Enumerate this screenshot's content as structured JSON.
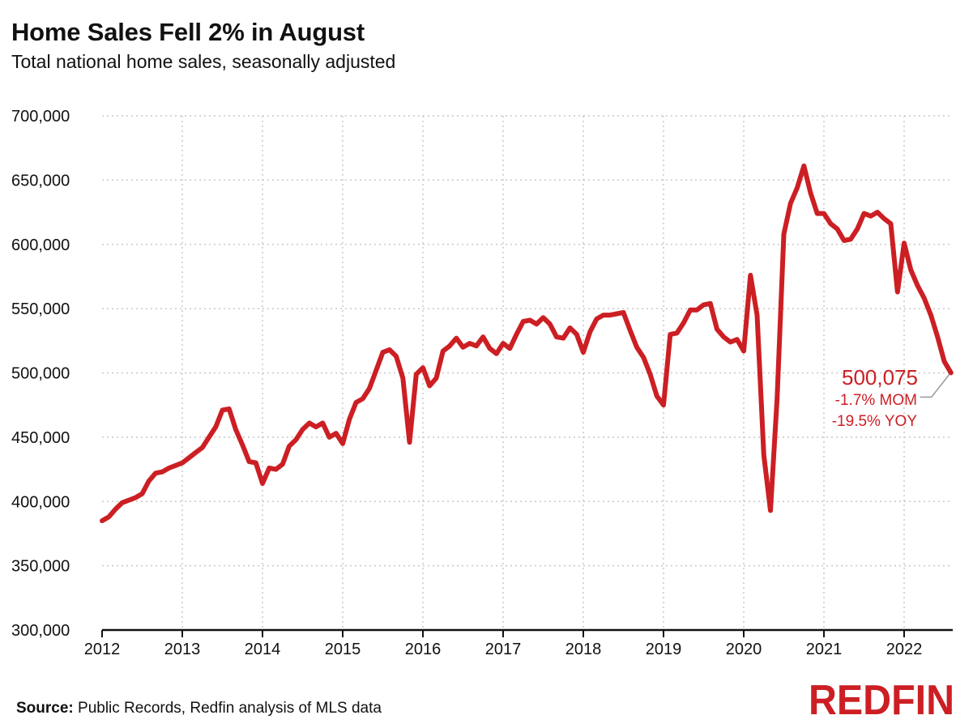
{
  "header": {
    "title": "Home Sales Fell 2% in August",
    "subtitle": "Total national home sales, seasonally adjusted"
  },
  "footer": {
    "source_label": "Source:",
    "source_text": "Public Records, Redfin analysis of MLS data",
    "logo_text": "REDFIN"
  },
  "colors": {
    "line": "#cc1f24",
    "annotation": "#cc1f24",
    "grid": "#c8c8c8",
    "axis": "#111111",
    "logo": "#cc1f24"
  },
  "chart_data": {
    "type": "line",
    "title": "Home Sales Fell 2% in August",
    "subtitle": "Total national home sales, seasonally adjusted",
    "xlabel": "",
    "ylabel": "",
    "ylim": [
      300000,
      700000
    ],
    "yticks": [
      300000,
      350000,
      400000,
      450000,
      500000,
      550000,
      600000,
      650000,
      700000
    ],
    "ytick_labels": [
      "300,000",
      "350,000",
      "400,000",
      "450,000",
      "500,000",
      "550,000",
      "600,000",
      "650,000",
      "700,000"
    ],
    "xticks": [
      "2012",
      "2013",
      "2014",
      "2015",
      "2016",
      "2017",
      "2018",
      "2019",
      "2020",
      "2021",
      "2022"
    ],
    "grid": "vertical dotted at years, horizontal dotted at ticks",
    "series": [
      {
        "x": [
          "2012-01",
          "2012-02",
          "2012-03",
          "2012-04",
          "2012-05",
          "2012-06",
          "2012-07",
          "2012-08",
          "2012-09",
          "2012-10",
          "2012-11",
          "2012-12",
          "2013-01",
          "2013-02",
          "2013-03",
          "2013-04",
          "2013-05",
          "2013-06",
          "2013-07",
          "2013-08",
          "2013-09",
          "2013-10",
          "2013-11",
          "2013-12",
          "2014-01",
          "2014-02",
          "2014-03",
          "2014-04",
          "2014-05",
          "2014-06",
          "2014-07",
          "2014-08",
          "2014-09",
          "2014-10",
          "2014-11",
          "2014-12",
          "2015-01",
          "2015-02",
          "2015-03",
          "2015-04",
          "2015-05",
          "2015-06",
          "2015-07",
          "2015-08",
          "2015-09",
          "2015-10",
          "2015-11",
          "2015-12",
          "2016-01",
          "2016-02",
          "2016-03",
          "2016-04",
          "2016-05",
          "2016-06",
          "2016-07",
          "2016-08",
          "2016-09",
          "2016-10",
          "2016-11",
          "2016-12",
          "2017-01",
          "2017-02",
          "2017-03",
          "2017-04",
          "2017-05",
          "2017-06",
          "2017-07",
          "2017-08",
          "2017-09",
          "2017-10",
          "2017-11",
          "2017-12",
          "2018-01",
          "2018-02",
          "2018-03",
          "2018-04",
          "2018-05",
          "2018-06",
          "2018-07",
          "2018-08",
          "2018-09",
          "2018-10",
          "2018-11",
          "2018-12",
          "2019-01",
          "2019-02",
          "2019-03",
          "2019-04",
          "2019-05",
          "2019-06",
          "2019-07",
          "2019-08",
          "2019-09",
          "2019-10",
          "2019-11",
          "2019-12",
          "2020-01",
          "2020-02",
          "2020-03",
          "2020-04",
          "2020-05",
          "2020-06",
          "2020-07",
          "2020-08",
          "2020-09",
          "2020-10",
          "2020-11",
          "2020-12",
          "2021-01",
          "2021-02",
          "2021-03",
          "2021-04",
          "2021-05",
          "2021-06",
          "2021-07",
          "2021-08",
          "2021-09",
          "2021-10",
          "2021-11",
          "2021-12",
          "2022-01",
          "2022-02",
          "2022-03",
          "2022-04",
          "2022-05",
          "2022-06",
          "2022-07",
          "2022-08"
        ],
        "values": [
          385000,
          388000,
          394000,
          399000,
          401000,
          403000,
          406000,
          416000,
          422000,
          423000,
          426000,
          428000,
          430000,
          434000,
          438000,
          442000,
          450000,
          458000,
          471000,
          472000,
          456000,
          444000,
          431000,
          430000,
          414000,
          426000,
          425000,
          429000,
          443000,
          448000,
          456000,
          461000,
          458000,
          461000,
          450000,
          453000,
          445000,
          464000,
          477000,
          480000,
          488000,
          502000,
          516000,
          518000,
          513000,
          496000,
          446000,
          499000,
          504000,
          490000,
          496000,
          517000,
          521000,
          527000,
          520000,
          523000,
          521000,
          528000,
          519000,
          515000,
          523000,
          519000,
          530000,
          540000,
          541000,
          538000,
          543000,
          538000,
          528000,
          527000,
          535000,
          530000,
          516000,
          532000,
          542000,
          545000,
          545000,
          546000,
          547000,
          533000,
          520000,
          512000,
          499000,
          482000,
          475000,
          530000,
          531000,
          539000,
          549000,
          549000,
          553000,
          554000,
          534000,
          528000,
          524000,
          526000,
          517000,
          576000,
          545000,
          436000,
          393000,
          480000,
          608000,
          632000,
          644000,
          661000,
          640000,
          624000,
          624000,
          616000,
          612000,
          603000,
          604000,
          612000,
          624000,
          622000,
          625000,
          620000,
          616000,
          563000,
          601000,
          580000,
          568000,
          558000,
          545000,
          528000,
          509000,
          500075
        ]
      }
    ],
    "annotations": [
      {
        "value": "500,075",
        "lines": [
          "-1.7% MOM",
          "-19.5% YOY"
        ]
      }
    ]
  }
}
